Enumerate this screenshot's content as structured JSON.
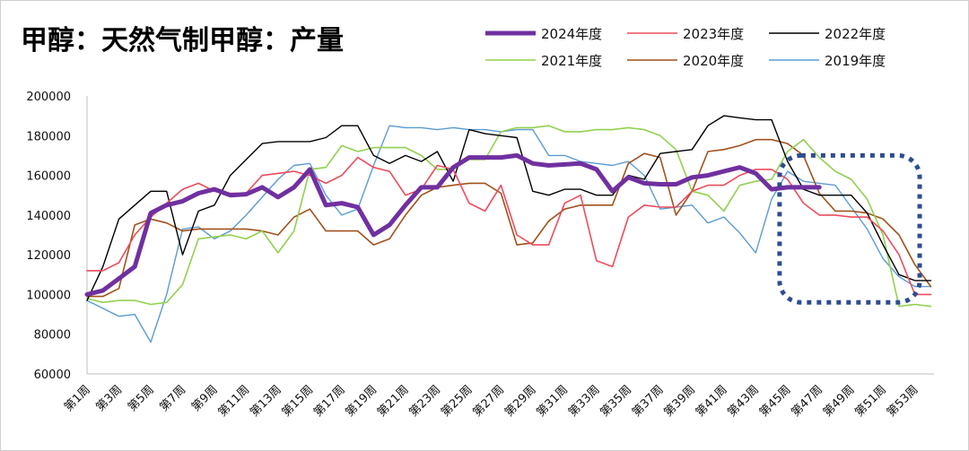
{
  "chart_data": {
    "type": "line",
    "title": "甲醇：天然气制甲醇：产量",
    "xlabel": "",
    "ylabel": "",
    "ylim": [
      60000,
      200000
    ],
    "yticks": [
      60000,
      80000,
      100000,
      120000,
      140000,
      160000,
      180000,
      200000
    ],
    "x_tick_labels": [
      "第1周",
      "第3周",
      "第5周",
      "第7周",
      "第9周",
      "第11周",
      "第13周",
      "第15周",
      "第17周",
      "第19周",
      "第21周",
      "第23周",
      "第25周",
      "第27周",
      "第29周",
      "第31周",
      "第33周",
      "第35周",
      "第37周",
      "第39周",
      "第41周",
      "第43周",
      "第45周",
      "第47周",
      "第49周",
      "第51周",
      "第53周"
    ],
    "x_tick_weeks": [
      1,
      3,
      5,
      7,
      9,
      11,
      13,
      15,
      17,
      19,
      21,
      23,
      25,
      27,
      29,
      31,
      33,
      35,
      37,
      39,
      41,
      43,
      45,
      47,
      49,
      51,
      53
    ],
    "series": [
      {
        "name": "2024年度",
        "color": "#7030a0",
        "width": 5,
        "values": [
          100000,
          102000,
          108000,
          114000,
          141000,
          145000,
          147000,
          151000,
          153000,
          150000,
          150500,
          154000,
          149000,
          154000,
          163000,
          145000,
          146000,
          144000,
          130000,
          135000,
          145000,
          154000,
          154000,
          164000,
          169000,
          169000,
          169000,
          170000,
          166000,
          165000,
          165500,
          166000,
          163000,
          152000,
          159000,
          156000,
          155500,
          155500,
          159000,
          160000,
          162000,
          164000,
          161000,
          153000,
          154000,
          154000,
          154000
        ]
      },
      {
        "name": "2023年度",
        "color": "#ed4c5c",
        "width": 1.6,
        "values": [
          112000,
          112000,
          116000,
          130000,
          139000,
          146000,
          153000,
          156000,
          152000,
          151000,
          151000,
          160000,
          161000,
          162000,
          160000,
          156000,
          160000,
          169000,
          164000,
          162000,
          150000,
          153000,
          165000,
          163000,
          146000,
          142000,
          155000,
          130000,
          125000,
          125000,
          146000,
          150000,
          117000,
          114000,
          139000,
          145000,
          144000,
          144000,
          152000,
          155000,
          155000,
          160000,
          163000,
          163000,
          158000,
          146000,
          140000,
          140000,
          139000,
          139000,
          132000,
          120000,
          100000,
          100000
        ]
      },
      {
        "name": "2022年度",
        "color": "#000000",
        "width": 1.4,
        "values": [
          97000,
          114000,
          138000,
          145000,
          152000,
          152000,
          120000,
          142000,
          145000,
          160000,
          168000,
          176000,
          177000,
          177000,
          177000,
          179000,
          185000,
          185000,
          170000,
          166000,
          170000,
          167000,
          172000,
          157000,
          183000,
          181000,
          180000,
          179000,
          152000,
          150000,
          153000,
          153000,
          150000,
          150000,
          160000,
          158000,
          171000,
          172000,
          173000,
          185000,
          190000,
          189000,
          188000,
          188000,
          167000,
          153000,
          150000,
          150000,
          150000,
          141000,
          125000,
          110000,
          107000,
          107000
        ]
      },
      {
        "name": "2021年度",
        "color": "#92d050",
        "width": 1.6,
        "values": [
          98000,
          96000,
          97000,
          97000,
          95000,
          96000,
          105000,
          128000,
          129000,
          130000,
          128000,
          132000,
          121000,
          132000,
          163000,
          164000,
          175000,
          172000,
          174000,
          174000,
          174000,
          170000,
          163000,
          163000,
          168000,
          168000,
          182000,
          184000,
          184000,
          185000,
          182000,
          182000,
          183000,
          183000,
          184000,
          183000,
          180000,
          173000,
          152000,
          150000,
          142000,
          155000,
          157000,
          158000,
          172000,
          178000,
          169000,
          162000,
          158000,
          148000,
          130000,
          94000,
          95000,
          94000
        ]
      },
      {
        "name": "2020年度",
        "color": "#a0521c",
        "width": 1.6,
        "values": [
          99000,
          99000,
          103000,
          135000,
          138000,
          136000,
          132000,
          133000,
          133000,
          133000,
          133000,
          132000,
          130000,
          139000,
          143000,
          132000,
          132000,
          132000,
          125000,
          128000,
          140000,
          150000,
          154000,
          155000,
          156000,
          156000,
          151000,
          125000,
          126000,
          137000,
          143000,
          145000,
          145000,
          145000,
          166000,
          171000,
          169000,
          140000,
          152000,
          172000,
          173000,
          175000,
          178000,
          178000,
          176000,
          170000,
          151000,
          142000,
          142000,
          141000,
          138000,
          130000,
          115000,
          104000
        ]
      },
      {
        "name": "2019年度",
        "color": "#5b9bd5",
        "width": 1.4,
        "values": [
          97000,
          93000,
          89000,
          90000,
          76000,
          100000,
          133000,
          134000,
          128000,
          132000,
          140000,
          149000,
          158000,
          165000,
          166000,
          150000,
          140000,
          143000,
          165000,
          185000,
          184000,
          184000,
          183000,
          184000,
          183000,
          183000,
          182000,
          183000,
          183000,
          170000,
          170000,
          167000,
          166000,
          165000,
          167000,
          160000,
          143000,
          144000,
          145000,
          136000,
          139000,
          131000,
          121000,
          148000,
          162000,
          157000,
          156000,
          155000,
          144000,
          133000,
          118000,
          109000,
          104000,
          104000
        ]
      }
    ],
    "annotation": {
      "type": "dashed-rounded-box",
      "x_weeks": [
        44.5,
        53.3
      ],
      "y_range": [
        96000,
        170000
      ],
      "color": "#2e4d8f"
    }
  }
}
